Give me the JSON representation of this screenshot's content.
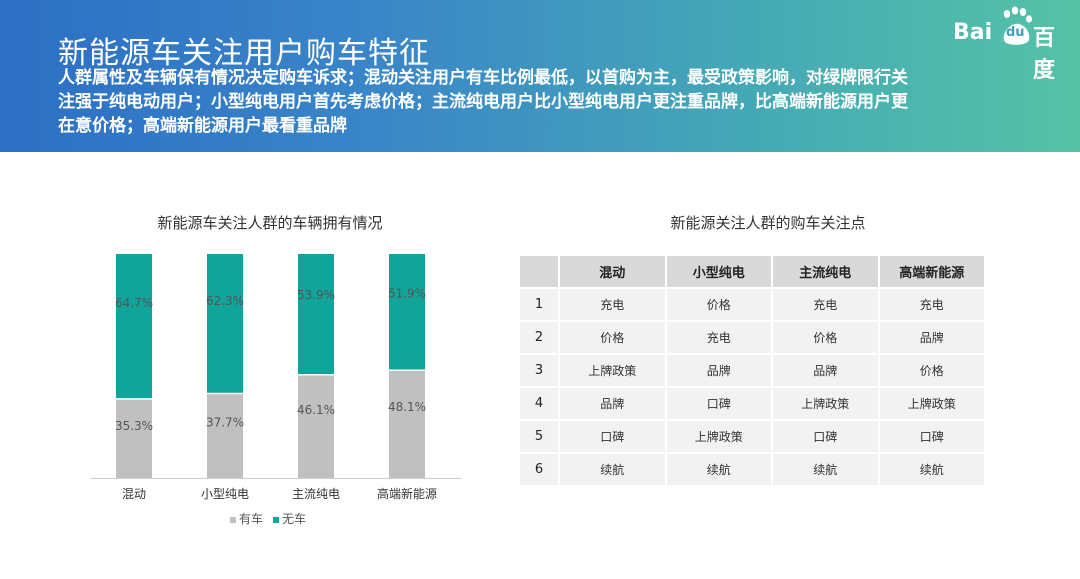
{
  "header": {
    "title": "新能源车关注用户购车特征",
    "subtitle": "人群属性及车辆保有情况决定购车诉求；混动关注用户有车比例最低，以首购为主，最受政策影响，对绿牌限行关注强于纯电动用户；小型纯电用户首先考虑价格；主流纯电用户比小型纯电用户更注重品牌，比高端新能源用户更在意价格；高端新能源用户最看重品牌"
  },
  "logo": {
    "text_bai": "Bai",
    "text_du": "du",
    "text_cn": "百度"
  },
  "chart_data": {
    "type": "bar",
    "stacked": true,
    "title": "新能源车关注人群的车辆拥有情况",
    "categories": [
      "混动",
      "小型纯电",
      "主流纯电",
      "高端新能源"
    ],
    "series": [
      {
        "name": "有车",
        "values": [
          35.3,
          37.7,
          46.1,
          48.1
        ],
        "labels": [
          "35.3%",
          "37.7%",
          "46.1%",
          "48.1%"
        ],
        "color": "#c0c0c0"
      },
      {
        "name": "无车",
        "values": [
          64.7,
          62.3,
          53.9,
          51.9
        ],
        "labels": [
          "64.7%",
          "62.3%",
          "53.9%",
          "51.9%"
        ],
        "color": "#10a49a"
      }
    ],
    "ylim": [
      0,
      100
    ],
    "legend": "bottom"
  },
  "table": {
    "title": "新能源关注人群的购车关注点",
    "headers": [
      "",
      "混动",
      "小型纯电",
      "主流纯电",
      "高端新能源"
    ],
    "rows": [
      [
        "1",
        "充电",
        "价格",
        "充电",
        "充电"
      ],
      [
        "2",
        "价格",
        "充电",
        "价格",
        "品牌"
      ],
      [
        "3",
        "上牌政策",
        "品牌",
        "品牌",
        "价格"
      ],
      [
        "4",
        "品牌",
        "口碑",
        "上牌政策",
        "上牌政策"
      ],
      [
        "5",
        "口碑",
        "上牌政策",
        "口碑",
        "口碑"
      ],
      [
        "6",
        "续航",
        "续航",
        "续航",
        "续航"
      ]
    ]
  }
}
